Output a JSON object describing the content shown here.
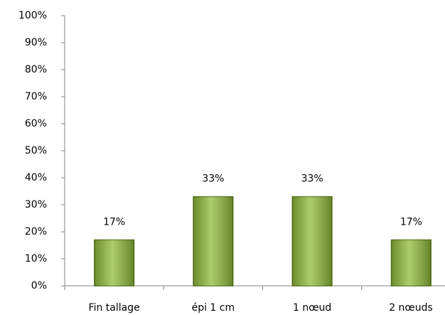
{
  "chart_data": {
    "type": "bar",
    "categories": [
      "Fin tallage",
      "épi 1 cm",
      "1 nœud",
      "2 nœuds"
    ],
    "values": [
      17,
      33,
      33,
      17
    ],
    "value_labels": [
      "17%",
      "33%",
      "33%",
      "17%"
    ],
    "color": "#8fbc3a",
    "ylim": [
      0,
      100
    ],
    "yticks": [
      {
        "value": 0,
        "label": "0%"
      },
      {
        "value": 10,
        "label": "10%"
      },
      {
        "value": 20,
        "label": "20%"
      },
      {
        "value": 30,
        "label": "30%"
      },
      {
        "value": 40,
        "label": "40%"
      },
      {
        "value": 50,
        "label": "50%"
      },
      {
        "value": 60,
        "label": "60%"
      },
      {
        "value": 70,
        "label": "70%"
      },
      {
        "value": 80,
        "label": "80%"
      },
      {
        "value": 90,
        "label": "90%"
      },
      {
        "value": 100,
        "label": "100%"
      }
    ],
    "grid": false
  }
}
